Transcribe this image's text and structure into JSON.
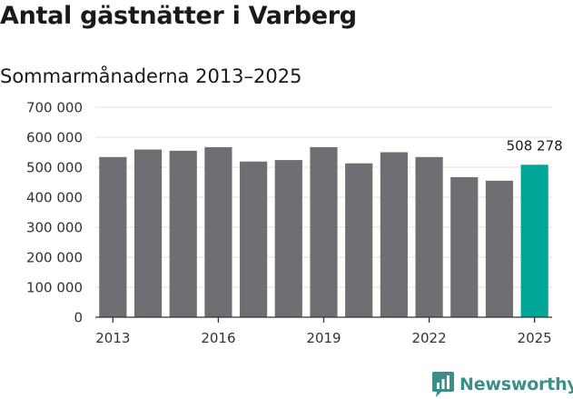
{
  "chart_data": {
    "type": "bar",
    "title": "Antal gästnätter i Varberg",
    "subtitle": "Sommarmånaderna 2013–2025",
    "categories": [
      2013,
      2014,
      2015,
      2016,
      2017,
      2018,
      2019,
      2020,
      2021,
      2022,
      2023,
      2024,
      2025
    ],
    "values": [
      534000,
      559000,
      555000,
      567000,
      519000,
      524000,
      567000,
      513000,
      550000,
      534000,
      467000,
      455000,
      508278
    ],
    "x_tick_labels": [
      "2013",
      "2016",
      "2019",
      "2022",
      "2025"
    ],
    "y_tick_labels": [
      "0",
      "100 000",
      "200 000",
      "300 000",
      "400 000",
      "500 000",
      "600 000",
      "700 000"
    ],
    "ylim": [
      0,
      700000
    ],
    "highlight_label": "508 278",
    "bar_color": "#6e6e73",
    "highlight_color": "#00a698",
    "grid": true,
    "legend": "none"
  },
  "brand": {
    "name": "Newsworthy",
    "icon": "chart-bubble-icon",
    "color": "#3a8f88"
  }
}
